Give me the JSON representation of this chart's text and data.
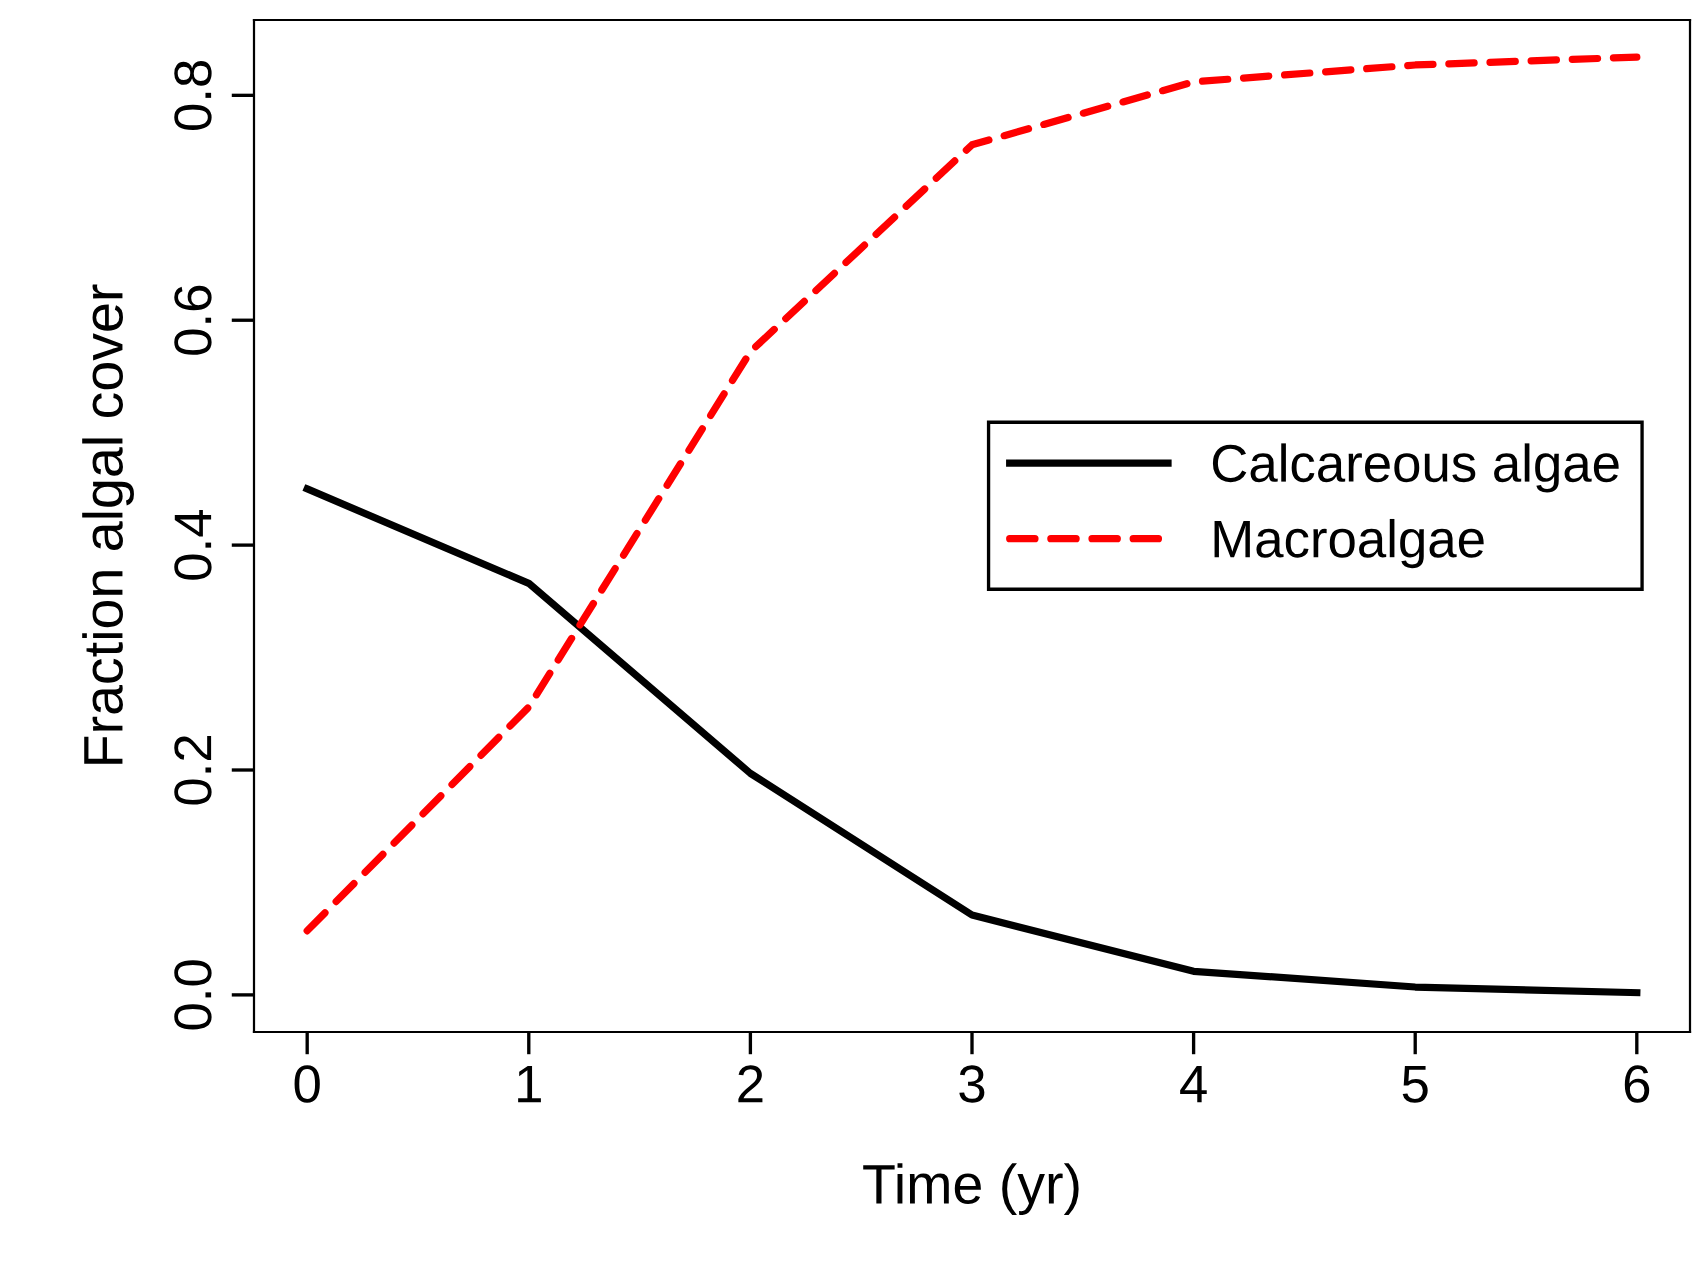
{
  "chart_data": {
    "type": "line",
    "xlabel": "Time (yr)",
    "ylabel": "Fraction algal cover",
    "x": [
      0,
      1,
      2,
      3,
      4,
      5,
      6
    ],
    "series": [
      {
        "name": "Calcareous algae",
        "color": "#000000",
        "line_style": "solid",
        "values": [
          0.45,
          0.366,
          0.197,
          0.071,
          0.021,
          0.007,
          0.002
        ]
      },
      {
        "name": "Macroalgae",
        "color": "#ff0000",
        "line_style": "dashed",
        "values": [
          0.057,
          0.256,
          0.572,
          0.756,
          0.812,
          0.827,
          0.834
        ]
      }
    ],
    "xlim": [
      -0.24,
      6.24
    ],
    "xticks": [
      0,
      1,
      2,
      3,
      4,
      5,
      6
    ],
    "ylim": [
      -0.033,
      0.867
    ],
    "yticks": [
      {
        "value": 0,
        "label": "0.0"
      },
      {
        "value": 0.2,
        "label": "0.2"
      },
      {
        "value": 0.4,
        "label": "0.4"
      },
      {
        "value": 0.6,
        "label": "0.6"
      },
      {
        "value": 0.8,
        "label": "0.8"
      }
    ],
    "grid": false,
    "legend": "right",
    "marker": "none"
  }
}
